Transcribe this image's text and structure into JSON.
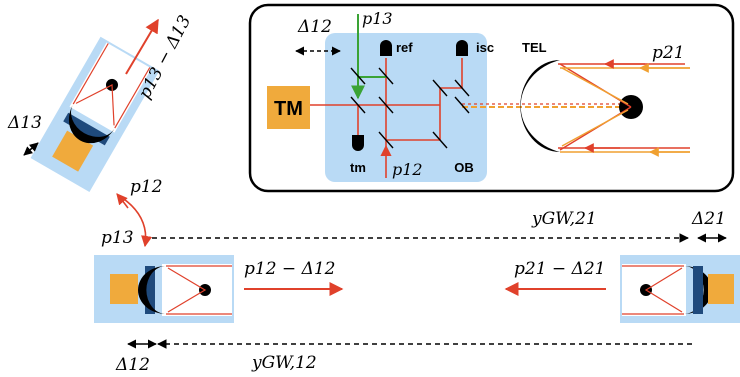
{
  "labels": {
    "delta12_top": "Δ12",
    "p13_top": "p13",
    "ref": "ref",
    "isc": "isc",
    "tel": "TEL",
    "p21_top": "p21",
    "tm_box": "TM",
    "tm": "tm",
    "p12_inner": "p12",
    "ob": "OB",
    "p13_minus_delta13": "p13 − Δ13",
    "delta13": "Δ13",
    "p12_left": "p12",
    "p13_left": "p13",
    "ygw21": "yGW,21",
    "delta21": "Δ21",
    "p12_minus_delta12": "p12 − Δ12",
    "p21_minus_delta21": "p21 − Δ21",
    "delta12_bottom": "Δ12",
    "ygw12": "yGW,12"
  },
  "colors": {
    "beam_red": "#e0412b",
    "beam_green": "#3aa335",
    "beam_orange": "#f0a030",
    "tm_orange": "#f0aa3c",
    "bench_blue": "#b9daf5",
    "mount_navy": "#1f4a7c",
    "black": "#000000"
  }
}
